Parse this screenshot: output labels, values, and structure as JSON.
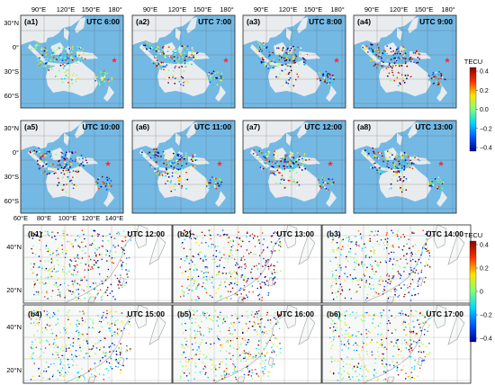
{
  "top": {
    "lon_ticks_a14": [
      "90°E",
      "120°E",
      "150°E",
      "180°"
    ],
    "lon_ticks_a58": [
      "60°E",
      "80°E",
      "100°E",
      "120°E",
      "140°E"
    ],
    "lat_ticks": [
      "30°N",
      "0°",
      "30°S",
      "60°S"
    ],
    "panels": [
      {
        "id": "(a1)",
        "utc": "UTC 6:00"
      },
      {
        "id": "(a2)",
        "utc": "UTC 7:00"
      },
      {
        "id": "(a3)",
        "utc": "UTC 8:00"
      },
      {
        "id": "(a4)",
        "utc": "UTC 9:00"
      },
      {
        "id": "(a5)",
        "utc": "UTC 10:00"
      },
      {
        "id": "(a6)",
        "utc": "UTC 11:00"
      },
      {
        "id": "(a7)",
        "utc": "UTC 12:00"
      },
      {
        "id": "(a8)",
        "utc": "UTC 13:00"
      }
    ],
    "colorbar": {
      "title": "TECU",
      "ticks": [
        "0.4",
        "0.2",
        "0.0",
        "−0.2",
        "−0.4"
      ]
    }
  },
  "bottom": {
    "lat_ticks": [
      "40°N",
      "20°N"
    ],
    "panels": [
      {
        "id": "(b1)",
        "utc": "UTC 12:00"
      },
      {
        "id": "(b2)",
        "utc": "UTC 13:00"
      },
      {
        "id": "(b3)",
        "utc": "UTC 14:00"
      },
      {
        "id": "(b4)",
        "utc": "UTC 15:00"
      },
      {
        "id": "(b5)",
        "utc": "UTC 16:00"
      },
      {
        "id": "(b6)",
        "utc": "UTC 17:00"
      }
    ],
    "colorbar": {
      "title": "TECU",
      "ticks": [
        "0.4",
        "0.2",
        "0",
        "−0.2",
        "−0.4"
      ]
    }
  },
  "colors": {
    "ocean": "#74b9e4",
    "land_top": "#e9ecef",
    "land_bottom": "#f7f8f8",
    "sea_bottom": "#ffffff",
    "grid": "#555555",
    "epicenter_star": "#ff2a2a",
    "colormap": [
      "#00008f",
      "#0055ff",
      "#00d5ff",
      "#7dff7a",
      "#ffe600",
      "#ff3000",
      "#8a0000"
    ]
  },
  "marker": {
    "name": "epicenter star"
  }
}
